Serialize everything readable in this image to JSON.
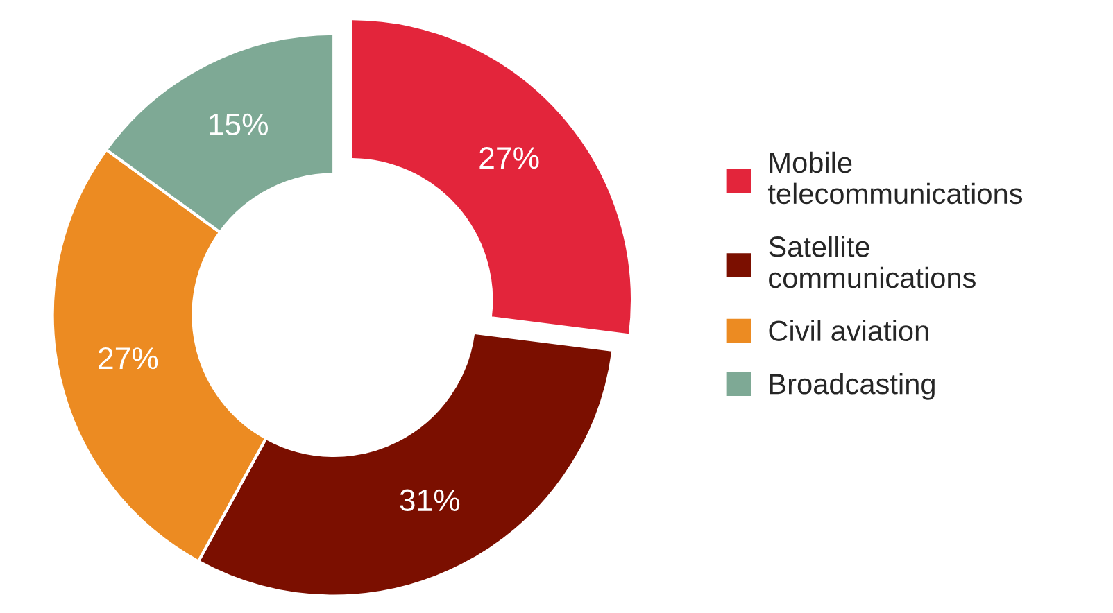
{
  "chart_data": {
    "type": "donut",
    "categories": [
      "Mobile\ntelecommunications",
      "Satellite\ncommunications",
      "Civil aviation",
      "Broadcasting"
    ],
    "values": [
      27,
      31,
      27,
      15
    ],
    "colors": [
      "#e3253b",
      "#7b0f00",
      "#ec8b22",
      "#7ea995"
    ],
    "value_labels": [
      "27%",
      "31%",
      "27%",
      "15%"
    ],
    "legend": "right"
  }
}
